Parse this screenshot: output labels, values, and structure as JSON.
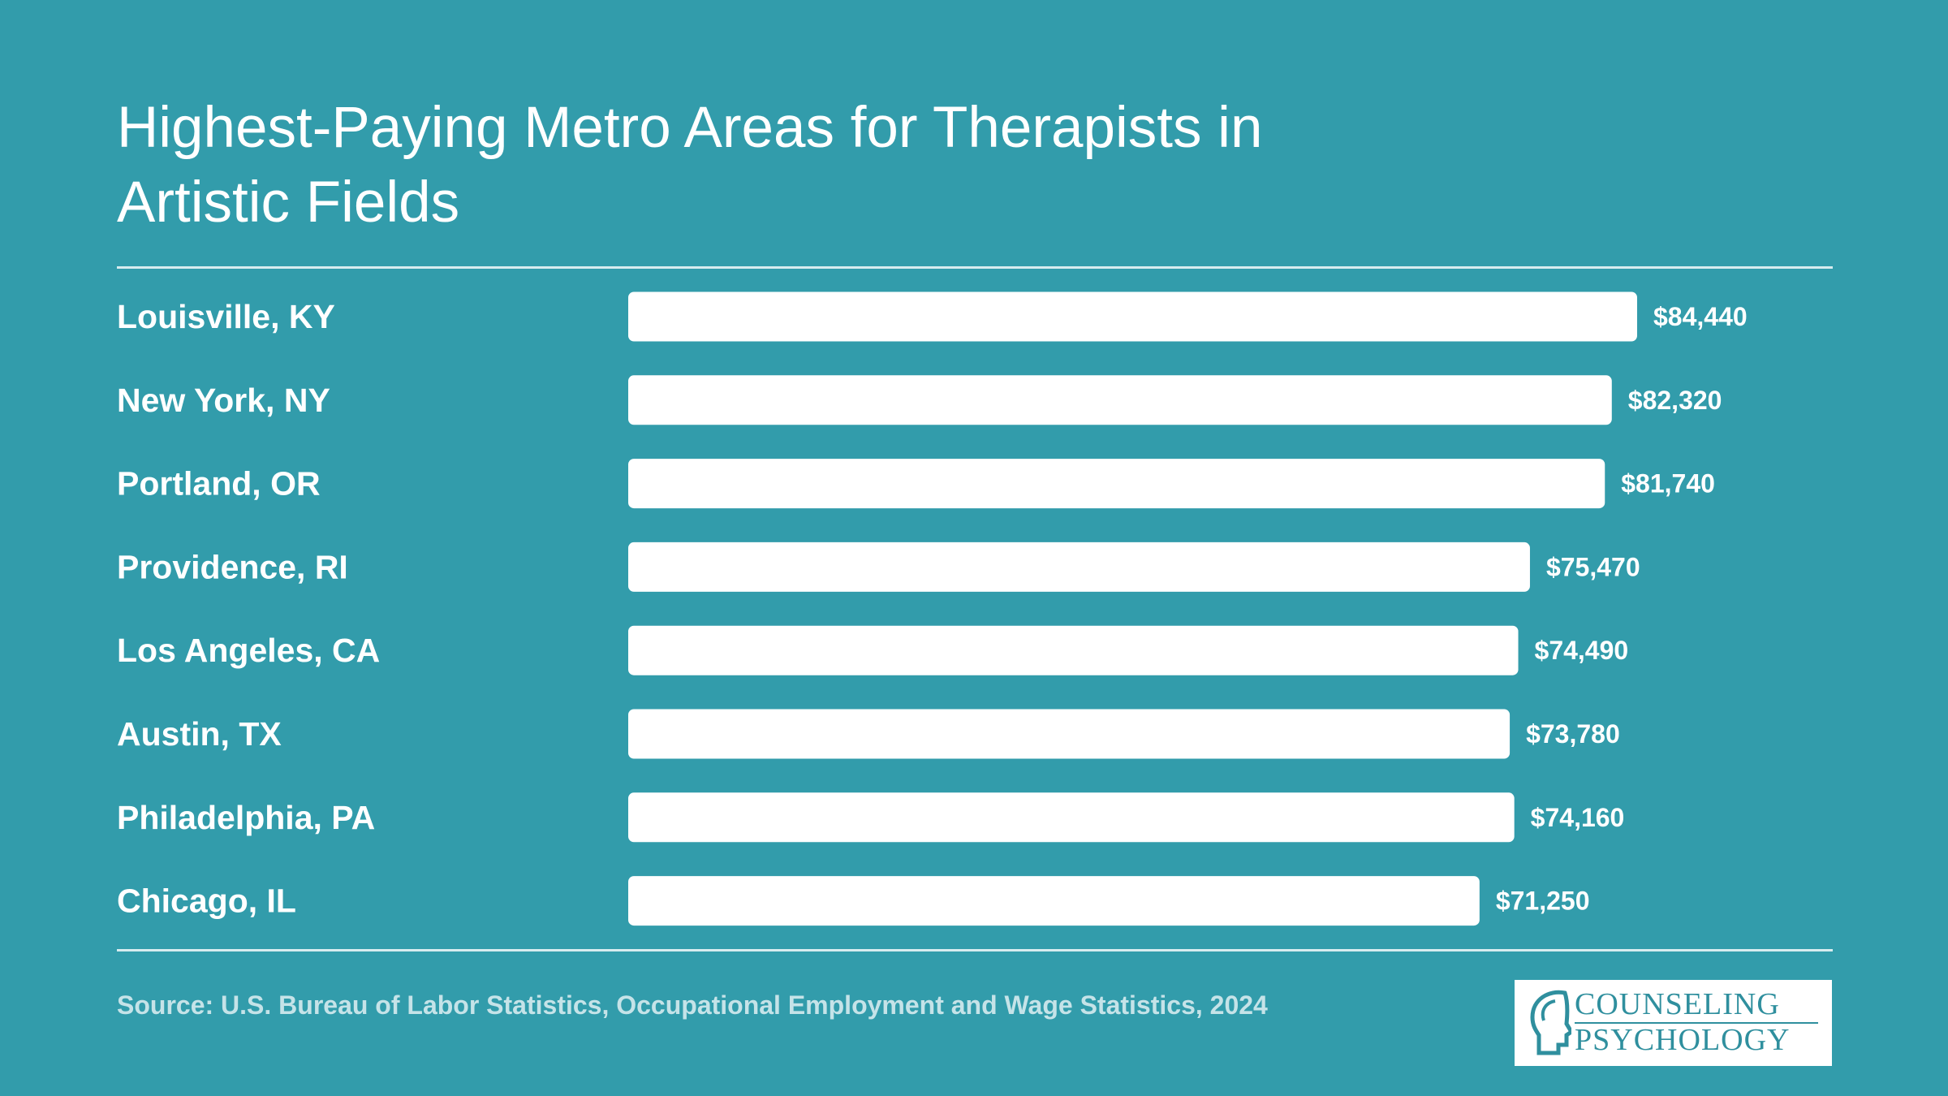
{
  "chart_data": {
    "type": "bar",
    "orientation": "horizontal",
    "title": "Highest-Paying Metro Areas for Therapists in Artistic Fields",
    "categories": [
      "Louisville, KY",
      "New York, NY",
      "Portland, OR",
      "Providence, RI",
      "Los Angeles, CA",
      "Austin, TX",
      "Philadelphia, PA",
      "Chicago, IL"
    ],
    "values": [
      84440,
      82320,
      81740,
      75470,
      74490,
      73780,
      74160,
      71250
    ],
    "value_labels": [
      "$84,440",
      "$82,320",
      "$81,740",
      "$75,470",
      "$74,490",
      "$73,780",
      "$74,160",
      "$71,250"
    ],
    "xlim": [
      0,
      84440
    ],
    "grid": false,
    "legend": "none",
    "colors": {
      "background": "#329cab",
      "bar": "#ffffff",
      "text": "#ffffff",
      "source_text": "#c5e3e8"
    }
  },
  "source": "Source: U.S. Bureau of Labor Statistics, Occupational Employment and Wage Statistics, 2024",
  "logo": {
    "line1": "COUNSELING",
    "line2": "PSYCHOLOGY",
    "icon": "head-profile-icon"
  }
}
